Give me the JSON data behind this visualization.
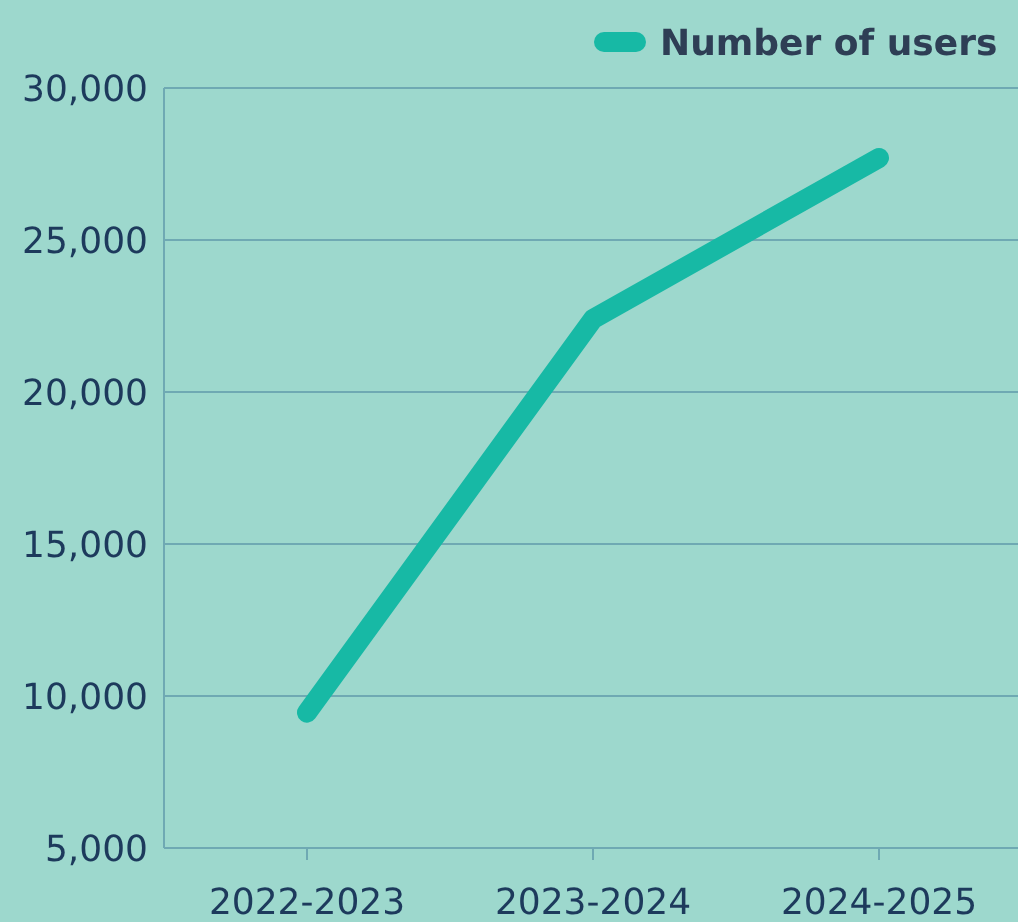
{
  "chart_data": {
    "type": "line",
    "categories": [
      "2022-2023",
      "2023-2024",
      "2024-2025"
    ],
    "series": [
      {
        "name": "Number of users",
        "color": "#17b9a5",
        "values": [
          9450,
          22400,
          27700
        ]
      }
    ],
    "ylim": [
      5000,
      30000
    ],
    "yticks": [
      {
        "value": 5000,
        "label": "5,000"
      },
      {
        "value": 10000,
        "label": "10,000"
      },
      {
        "value": 15000,
        "label": "15,000"
      },
      {
        "value": 20000,
        "label": "20,000"
      },
      {
        "value": 25000,
        "label": "25,000"
      },
      {
        "value": 30000,
        "label": "30,000"
      }
    ],
    "grid": "y",
    "legend": "top right",
    "marker": "none",
    "line_style": "solid"
  }
}
